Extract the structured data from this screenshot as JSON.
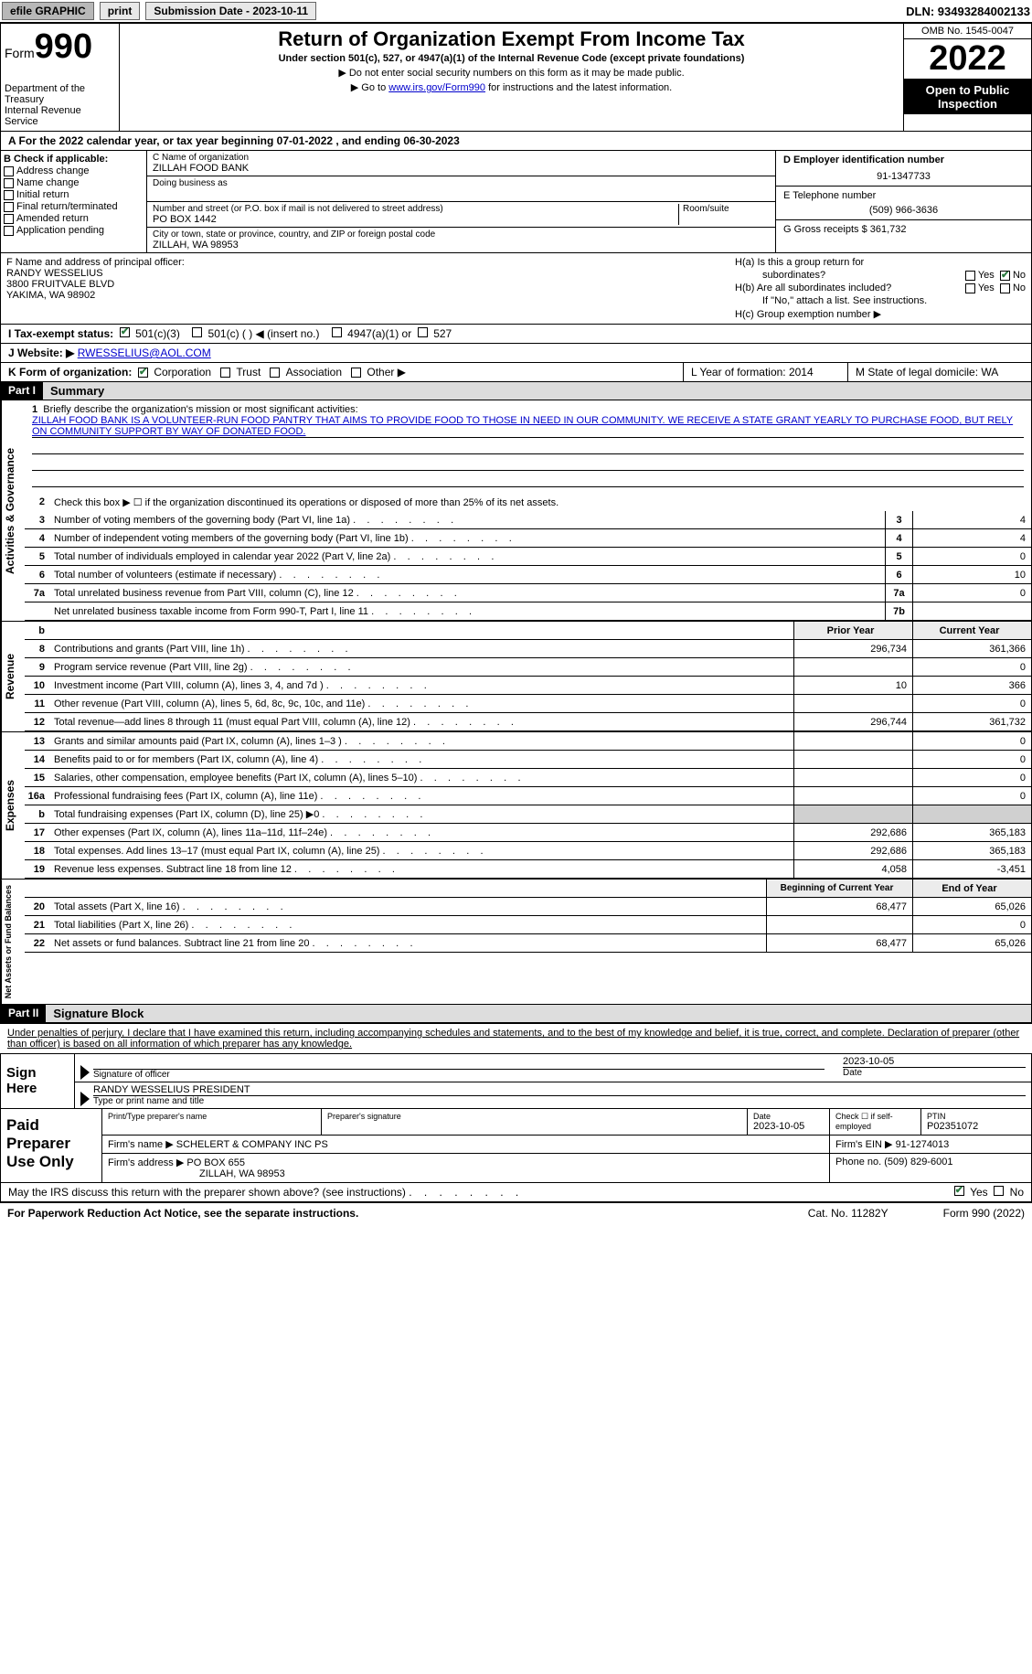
{
  "topbar": {
    "efile": "efile GRAPHIC",
    "print": "print",
    "subdate_label": "Submission Date - 2023-10-11",
    "dln": "DLN: 93493284002133"
  },
  "header": {
    "form_word": "Form",
    "form_no": "990",
    "dept": "Department of the Treasury",
    "irs": "Internal Revenue Service",
    "title": "Return of Organization Exempt From Income Tax",
    "subtitle": "Under section 501(c), 527, or 4947(a)(1) of the Internal Revenue Code (except private foundations)",
    "note1": "▶ Do not enter social security numbers on this form as it may be made public.",
    "note2_pre": "▶ Go to ",
    "note2_link": "www.irs.gov/Form990",
    "note2_post": " for instructions and the latest information.",
    "omb": "OMB No. 1545-0047",
    "year": "2022",
    "inspect": "Open to Public Inspection"
  },
  "period": {
    "line": "A For the 2022 calendar year, or tax year beginning 07-01-2022    , and ending 06-30-2023"
  },
  "sectionB": {
    "label": "B Check if applicable:",
    "opts": [
      "Address change",
      "Name change",
      "Initial return",
      "Final return/terminated",
      "Amended return",
      "Application pending"
    ]
  },
  "sectionC": {
    "name_label": "C Name of organization",
    "name": "ZILLAH FOOD BANK",
    "dba_label": "Doing business as",
    "addr_label": "Number and street (or P.O. box if mail is not delivered to street address)",
    "room_label": "Room/suite",
    "addr": "PO BOX 1442",
    "city_label": "City or town, state or province, country, and ZIP or foreign postal code",
    "city": "ZILLAH, WA  98953"
  },
  "sectionD": {
    "label": "D Employer identification number",
    "val": "91-1347733"
  },
  "sectionE": {
    "label": "E Telephone number",
    "val": "(509) 966-3636"
  },
  "sectionG": {
    "label": "G Gross receipts $ 361,732"
  },
  "sectionF": {
    "label": "F  Name and address of principal officer:",
    "l1": "RANDY WESSELIUS",
    "l2": "3800 FRUITVALE BLVD",
    "l3": "YAKIMA, WA  98902"
  },
  "sectionH": {
    "a_label": "H(a)  Is this a group return for",
    "a_sub": "subordinates?",
    "b_label": "H(b)  Are all subordinates included?",
    "note": "If \"No,\" attach a list. See instructions.",
    "c_label": "H(c)  Group exemption number ▶",
    "yes": "Yes",
    "no": "No"
  },
  "sectionI": {
    "label": "I    Tax-exempt status:",
    "o1": "501(c)(3)",
    "o2": "501(c) (  ) ◀ (insert no.)",
    "o3": "4947(a)(1) or",
    "o4": "527"
  },
  "sectionJ": {
    "label": "J   Website: ▶",
    "val": "RWESSELIUS@AOL.COM"
  },
  "sectionK": {
    "label": "K Form of organization:",
    "o1": "Corporation",
    "o2": "Trust",
    "o3": "Association",
    "o4": "Other ▶"
  },
  "sectionL": {
    "label": "L Year of formation: 2014"
  },
  "sectionM": {
    "label": "M State of legal domicile: WA"
  },
  "part1": {
    "hdr": "Part I",
    "title": "Summary",
    "q1": "Briefly describe the organization's mission or most significant activities:",
    "mission": "ZILLAH FOOD BANK IS A VOLUNTEER-RUN FOOD PANTRY THAT AIMS TO PROVIDE FOOD TO THOSE IN NEED IN OUR COMMUNITY. WE RECEIVE A STATE GRANT YEARLY TO PURCHASE FOOD, BUT RELY ON COMMUNITY SUPPORT BY WAY OF DONATED FOOD.",
    "q2": "Check this box ▶ ☐ if the organization discontinued its operations or disposed of more than 25% of its net assets.",
    "vtab1": "Activities & Governance",
    "vtab2": "Revenue",
    "vtab3": "Expenses",
    "vtab4": "Net Assets or Fund Balances",
    "lines_gov": [
      {
        "n": "3",
        "t": "Number of voting members of the governing body (Part VI, line 1a)",
        "box": "3",
        "v": "4"
      },
      {
        "n": "4",
        "t": "Number of independent voting members of the governing body (Part VI, line 1b)",
        "box": "4",
        "v": "4"
      },
      {
        "n": "5",
        "t": "Total number of individuals employed in calendar year 2022 (Part V, line 2a)",
        "box": "5",
        "v": "0"
      },
      {
        "n": "6",
        "t": "Total number of volunteers (estimate if necessary)",
        "box": "6",
        "v": "10"
      },
      {
        "n": "7a",
        "t": "Total unrelated business revenue from Part VIII, column (C), line 12",
        "box": "7a",
        "v": "0"
      },
      {
        "n": "",
        "t": "Net unrelated business taxable income from Form 990-T, Part I, line 11",
        "box": "7b",
        "v": ""
      }
    ],
    "prior_hdr": "Prior Year",
    "curr_hdr": "Current Year",
    "lines_rev": [
      {
        "n": "8",
        "t": "Contributions and grants (Part VIII, line 1h)",
        "p": "296,734",
        "c": "361,366"
      },
      {
        "n": "9",
        "t": "Program service revenue (Part VIII, line 2g)",
        "p": "",
        "c": "0"
      },
      {
        "n": "10",
        "t": "Investment income (Part VIII, column (A), lines 3, 4, and 7d )",
        "p": "10",
        "c": "366"
      },
      {
        "n": "11",
        "t": "Other revenue (Part VIII, column (A), lines 5, 6d, 8c, 9c, 10c, and 11e)",
        "p": "",
        "c": "0"
      },
      {
        "n": "12",
        "t": "Total revenue—add lines 8 through 11 (must equal Part VIII, column (A), line 12)",
        "p": "296,744",
        "c": "361,732"
      }
    ],
    "lines_exp": [
      {
        "n": "13",
        "t": "Grants and similar amounts paid (Part IX, column (A), lines 1–3 )",
        "p": "",
        "c": "0"
      },
      {
        "n": "14",
        "t": "Benefits paid to or for members (Part IX, column (A), line 4)",
        "p": "",
        "c": "0"
      },
      {
        "n": "15",
        "t": "Salaries, other compensation, employee benefits (Part IX, column (A), lines 5–10)",
        "p": "",
        "c": "0"
      },
      {
        "n": "16a",
        "t": "Professional fundraising fees (Part IX, column (A), line 11e)",
        "p": "",
        "c": "0"
      },
      {
        "n": "b",
        "t": "Total fundraising expenses (Part IX, column (D), line 25) ▶0",
        "p": "GREY",
        "c": "GREY"
      },
      {
        "n": "17",
        "t": "Other expenses (Part IX, column (A), lines 11a–11d, 11f–24e)",
        "p": "292,686",
        "c": "365,183"
      },
      {
        "n": "18",
        "t": "Total expenses. Add lines 13–17 (must equal Part IX, column (A), line 25)",
        "p": "292,686",
        "c": "365,183"
      },
      {
        "n": "19",
        "t": "Revenue less expenses. Subtract line 18 from line 12",
        "p": "4,058",
        "c": "-3,451"
      }
    ],
    "beg_hdr": "Beginning of Current Year",
    "end_hdr": "End of Year",
    "lines_net": [
      {
        "n": "20",
        "t": "Total assets (Part X, line 16)",
        "p": "68,477",
        "c": "65,026"
      },
      {
        "n": "21",
        "t": "Total liabilities (Part X, line 26)",
        "p": "",
        "c": "0"
      },
      {
        "n": "22",
        "t": "Net assets or fund balances. Subtract line 21 from line 20",
        "p": "68,477",
        "c": "65,026"
      }
    ]
  },
  "part2": {
    "hdr": "Part II",
    "title": "Signature Block",
    "intro": "Under penalties of perjury, I declare that I have examined this return, including accompanying schedules and statements, and to the best of my knowledge and belief, it is true, correct, and complete. Declaration of preparer (other than officer) is based on all information of which preparer has any knowledge.",
    "sign_here": "Sign Here",
    "sig_date": "2023-10-05",
    "sig_label": "Signature of officer",
    "date_label": "Date",
    "name_title": "RANDY WESSELIUS PRESIDENT",
    "name_label": "Type or print name and title",
    "paid": "Paid Preparer Use Only",
    "prep_name_label": "Print/Type preparer's name",
    "prep_sig_label": "Preparer's signature",
    "prep_date_label": "Date",
    "prep_date": "2023-10-05",
    "check_self": "Check ☐ if self-employed",
    "ptin_label": "PTIN",
    "ptin": "P02351072",
    "firm_name_label": "Firm's name    ▶",
    "firm_name": "SCHELERT & COMPANY INC PS",
    "firm_ein_label": "Firm's EIN ▶",
    "firm_ein": "91-1274013",
    "firm_addr_label": "Firm's address ▶",
    "firm_addr1": "PO BOX 655",
    "firm_addr2": "ZILLAH, WA  98953",
    "phone_label": "Phone no.",
    "phone": "(509) 829-6001",
    "discuss": "May the IRS discuss this return with the preparer shown above? (see instructions)",
    "yes": "Yes",
    "no": "No"
  },
  "footer": {
    "pra": "For Paperwork Reduction Act Notice, see the separate instructions.",
    "cat": "Cat. No. 11282Y",
    "form": "Form 990 (2022)"
  }
}
